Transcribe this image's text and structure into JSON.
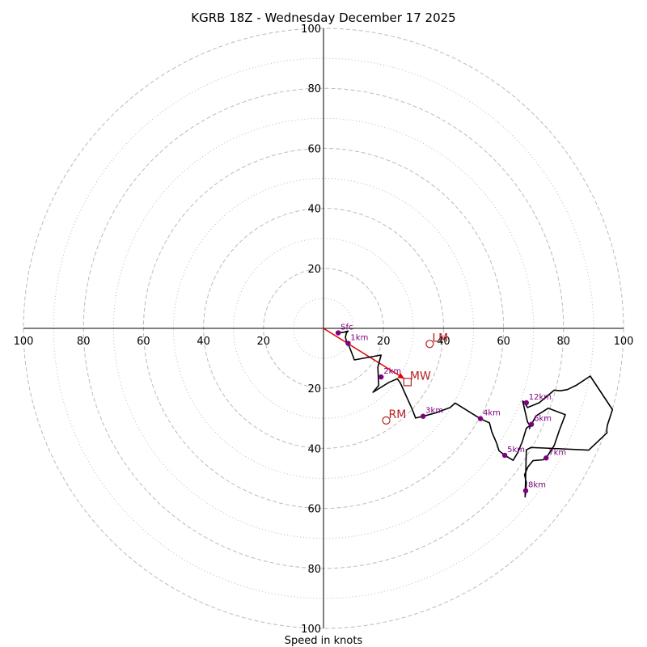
{
  "chart_data": {
    "type": "hodograph",
    "title": "KGRB 18Z - Wednesday December 17 2025",
    "xlabel": "Speed in knots",
    "units": "knots",
    "range": [
      -100,
      100
    ],
    "major_rings": [
      20,
      40,
      60,
      80,
      100
    ],
    "minor_rings": [
      10,
      30,
      50,
      70,
      90
    ],
    "x_tick_labels": [
      {
        "value": -100,
        "label": "100"
      },
      {
        "value": -80,
        "label": "80"
      },
      {
        "value": -60,
        "label": "60"
      },
      {
        "value": -40,
        "label": "40"
      },
      {
        "value": -20,
        "label": "20"
      },
      {
        "value": 20,
        "label": "20"
      },
      {
        "value": 40,
        "label": "40"
      },
      {
        "value": 60,
        "label": "60"
      },
      {
        "value": 80,
        "label": "80"
      },
      {
        "value": 100,
        "label": "100"
      }
    ],
    "y_tick_labels": [
      {
        "value": 100,
        "label": "100"
      },
      {
        "value": 80,
        "label": "80"
      },
      {
        "value": 60,
        "label": "60"
      },
      {
        "value": 40,
        "label": "40"
      },
      {
        "value": 20,
        "label": "20"
      },
      {
        "value": -20,
        "label": "20"
      },
      {
        "value": -40,
        "label": "40"
      },
      {
        "value": -60,
        "label": "60"
      },
      {
        "value": -80,
        "label": "80"
      },
      {
        "value": -100,
        "label": "100"
      }
    ],
    "trace": [
      [
        4.9,
        -1.5
      ],
      [
        6.8,
        -1.3
      ],
      [
        8.2,
        -0.9
      ],
      [
        7.6,
        -1.6
      ],
      [
        7.3,
        -3.0
      ],
      [
        7.8,
        -4.9
      ],
      [
        8.2,
        -5.0
      ],
      [
        10.3,
        -10.5
      ],
      [
        19.2,
        -8.9
      ],
      [
        18.1,
        -13.0
      ],
      [
        18.4,
        -19.0
      ],
      [
        16.5,
        -21.3
      ],
      [
        21.8,
        -18.0
      ],
      [
        24.6,
        -16.8
      ],
      [
        25.6,
        -18.2
      ],
      [
        27.0,
        -21.3
      ],
      [
        29.5,
        -26.8
      ],
      [
        30.7,
        -29.9
      ],
      [
        33.2,
        -29.3
      ],
      [
        37.3,
        -28.2
      ],
      [
        42.2,
        -26.4
      ],
      [
        43.9,
        -24.9
      ],
      [
        48.9,
        -28.0
      ],
      [
        52.3,
        -30.1
      ],
      [
        55.3,
        -31.5
      ],
      [
        56.1,
        -34.5
      ],
      [
        57.7,
        -38.3
      ],
      [
        58.5,
        -40.8
      ],
      [
        60.4,
        -42.3
      ],
      [
        63.2,
        -44.0
      ],
      [
        64.8,
        -41.3
      ],
      [
        66.3,
        -37.6
      ],
      [
        67.6,
        -33.3
      ],
      [
        69.3,
        -32.0
      ],
      [
        70.8,
        -29.2
      ],
      [
        74.9,
        -26.6
      ],
      [
        80.6,
        -28.8
      ],
      [
        78.6,
        -34.0
      ],
      [
        76.9,
        -39.0
      ],
      [
        74.2,
        -43.2
      ],
      [
        73.2,
        -43.8
      ],
      [
        69.8,
        -44.1
      ],
      [
        68.1,
        -46.2
      ],
      [
        67.0,
        -48.8
      ],
      [
        67.6,
        -51.4
      ],
      [
        67.4,
        -54.1
      ],
      [
        67.2,
        -56.2
      ],
      [
        67.6,
        -40.5
      ],
      [
        69.1,
        -39.7
      ],
      [
        73.6,
        -39.9
      ],
      [
        88.4,
        -40.6
      ],
      [
        94.5,
        -34.8
      ],
      [
        94.4,
        -33.9
      ],
      [
        94.6,
        -32.3
      ],
      [
        96.3,
        -27.1
      ],
      [
        88.9,
        -15.9
      ],
      [
        84.4,
        -18.9
      ],
      [
        81.3,
        -20.4
      ],
      [
        78.9,
        -20.8
      ],
      [
        76.9,
        -20.6
      ],
      [
        74.4,
        -22.7
      ],
      [
        71.9,
        -24.8
      ],
      [
        68.0,
        -26.4
      ],
      [
        66.9,
        -24.7
      ],
      [
        66.4,
        -24.2
      ],
      [
        67.2,
        -27.8
      ],
      [
        68.0,
        -31.2
      ],
      [
        68.9,
        -32.6
      ],
      [
        68.6,
        -33.6
      ]
    ],
    "height_markers": [
      {
        "label": "Sfc",
        "u": 4.9,
        "v": -1.5
      },
      {
        "label": "1km",
        "u": 8.2,
        "v": -5.0
      },
      {
        "label": "2km",
        "u": 19.2,
        "v": -16.2
      },
      {
        "label": "3km",
        "u": 33.2,
        "v": -29.3
      },
      {
        "label": "4km",
        "u": 52.3,
        "v": -30.1
      },
      {
        "label": "5km",
        "u": 60.4,
        "v": -42.3
      },
      {
        "label": "6km",
        "u": 69.3,
        "v": -32.0
      },
      {
        "label": "7km",
        "u": 74.2,
        "v": -43.2
      },
      {
        "label": "8km",
        "u": 67.4,
        "v": -54.1
      },
      {
        "label": "12km",
        "u": 67.6,
        "v": -24.8
      }
    ],
    "motions": [
      {
        "label": "LM",
        "u": 35.4,
        "v": -5.2,
        "marker": "circle"
      },
      {
        "label": "MW",
        "u": 28.0,
        "v": -17.9,
        "marker": "square"
      },
      {
        "label": "RM",
        "u": 20.9,
        "v": -30.7,
        "marker": "circle"
      }
    ],
    "storm_motion_vector": {
      "from": [
        0,
        0
      ],
      "to": [
        27.0,
        -16.8
      ]
    },
    "colors": {
      "trace": "#000000",
      "marker": "#800080",
      "motion": "#b22222",
      "vector": "#e00000",
      "ring": "#bbbbbb"
    }
  }
}
